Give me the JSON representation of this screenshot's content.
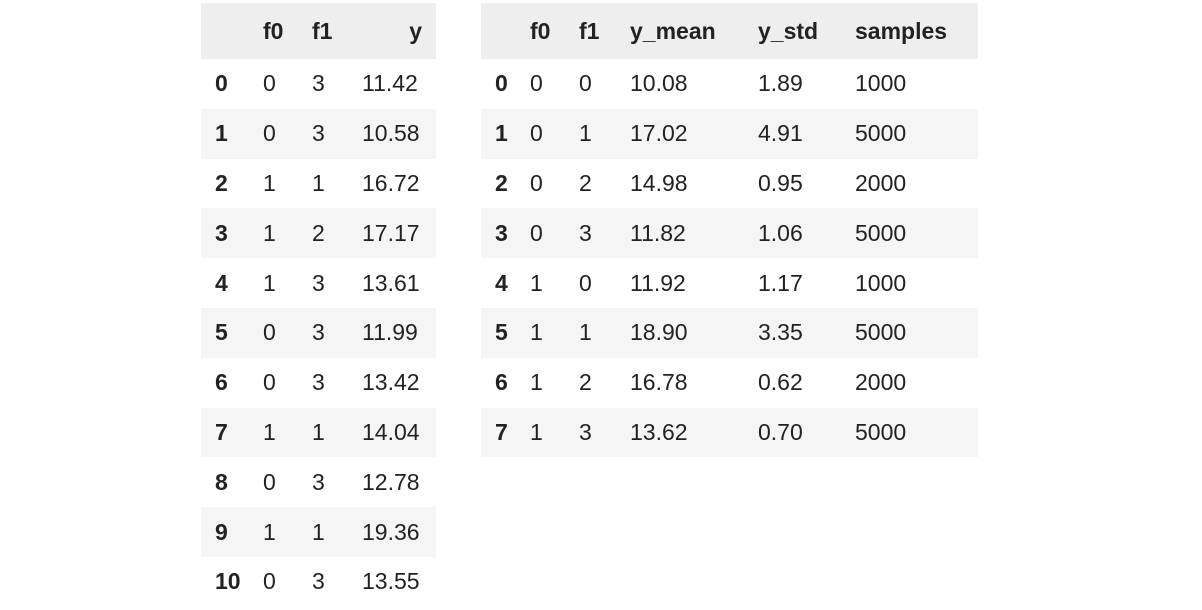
{
  "left_table": {
    "columns": [
      "",
      "f0",
      "f1",
      "y"
    ],
    "rows": [
      [
        "0",
        "0",
        "3",
        "11.42"
      ],
      [
        "1",
        "0",
        "3",
        "10.58"
      ],
      [
        "2",
        "1",
        "1",
        "16.72"
      ],
      [
        "3",
        "1",
        "2",
        "17.17"
      ],
      [
        "4",
        "1",
        "3",
        "13.61"
      ],
      [
        "5",
        "0",
        "3",
        "11.99"
      ],
      [
        "6",
        "0",
        "3",
        "13.42"
      ],
      [
        "7",
        "1",
        "1",
        "14.04"
      ],
      [
        "8",
        "0",
        "3",
        "12.78"
      ],
      [
        "9",
        "1",
        "1",
        "19.36"
      ],
      [
        "10",
        "0",
        "3",
        "13.55"
      ]
    ]
  },
  "right_table": {
    "columns": [
      "",
      "f0",
      "f1",
      "y_mean",
      "y_std",
      "samples"
    ],
    "rows": [
      [
        "0",
        "0",
        "0",
        "10.08",
        "1.89",
        "1000"
      ],
      [
        "1",
        "0",
        "1",
        "17.02",
        "4.91",
        "5000"
      ],
      [
        "2",
        "0",
        "2",
        "14.98",
        "0.95",
        "2000"
      ],
      [
        "3",
        "0",
        "3",
        "11.82",
        "1.06",
        "5000"
      ],
      [
        "4",
        "1",
        "0",
        "11.92",
        "1.17",
        "1000"
      ],
      [
        "5",
        "1",
        "1",
        "18.90",
        "3.35",
        "5000"
      ],
      [
        "6",
        "1",
        "2",
        "16.78",
        "0.62",
        "2000"
      ],
      [
        "7",
        "1",
        "3",
        "13.62",
        "0.70",
        "5000"
      ]
    ]
  }
}
